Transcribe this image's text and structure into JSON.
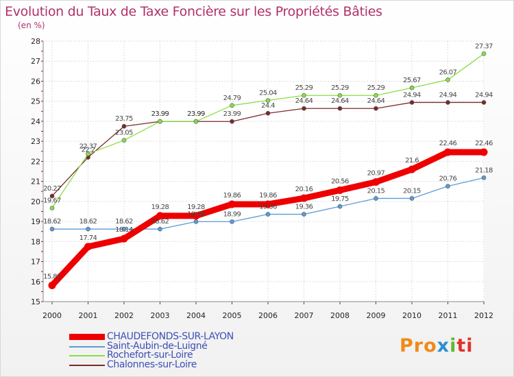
{
  "chart_data": {
    "type": "line",
    "title": "Evolution du Taux de Taxe Foncière sur les Propriétés Bâties",
    "unit_label": "(en %)",
    "xlabel": "",
    "ylabel": "",
    "x": [
      "2000",
      "2001",
      "2002",
      "2003",
      "2004",
      "2005",
      "2006",
      "2007",
      "2008",
      "2009",
      "2010",
      "2011",
      "2012"
    ],
    "ylim": [
      15,
      28
    ],
    "yticks": [
      "15",
      "16",
      "17",
      "18",
      "19",
      "20",
      "21",
      "22",
      "23",
      "24",
      "25",
      "26",
      "27",
      "28"
    ],
    "grid": true,
    "legend_position": "bottom-left",
    "series": [
      {
        "name": "CHAUDEFONDS-SUR-LAYON",
        "color": "#ee0000",
        "values": [
          15.81,
          17.74,
          18.14,
          19.28,
          19.28,
          19.86,
          19.86,
          20.16,
          20.56,
          20.97,
          21.6,
          22.46,
          22.46
        ],
        "labels": [
          "15.81",
          "17.74",
          "18.14",
          "19.28",
          "19.28",
          "19.86",
          "19.86",
          "20.16",
          "20.56",
          "20.97",
          "21.6",
          "22.46",
          "22.46"
        ]
      },
      {
        "name": "Saint-Aubin-de-Luigné",
        "color": "#5b9bd5",
        "values": [
          18.62,
          18.62,
          18.62,
          18.62,
          18.99,
          18.99,
          19.36,
          19.36,
          19.75,
          20.15,
          20.15,
          20.76,
          21.18
        ],
        "labels": [
          "18.62",
          "18.62",
          "18.62",
          "18.62",
          "18.99",
          "18.99",
          "19.36",
          "19.36",
          "19.75",
          "20.15",
          "20.15",
          "20.76",
          "21.18"
        ]
      },
      {
        "name": "Rochefort-sur-Loire",
        "color": "#88dd44",
        "values": [
          19.67,
          22.37,
          23.05,
          23.99,
          23.99,
          24.79,
          25.04,
          25.29,
          25.29,
          25.29,
          25.67,
          26.07,
          27.37
        ],
        "labels": [
          "19.67",
          "22.37",
          "23.05",
          "23.99",
          "23.99",
          "24.79",
          "25.04",
          "25.29",
          "25.29",
          "25.29",
          "25.67",
          "26.07",
          "27.37"
        ]
      },
      {
        "name": "Chalonnes-sur-Loire",
        "color": "#7a2a2a",
        "values": [
          20.27,
          22.2,
          23.75,
          23.99,
          23.99,
          23.99,
          24.4,
          24.64,
          24.64,
          24.64,
          24.94,
          24.94,
          24.94
        ],
        "labels": [
          "20.27",
          "22.2",
          "23.75",
          "23.99",
          "23.99",
          "23.99",
          "24.4",
          "24.64",
          "24.64",
          "24.64",
          "24.94",
          "24.94",
          "24.94"
        ]
      }
    ]
  },
  "legend": {
    "items": [
      "CHAUDEFONDS-SUR-LAYON",
      "Saint-Aubin-de-Luigné",
      "Rochefort-sur-Loire",
      "Chalonnes-sur-Loire"
    ]
  },
  "logo": {
    "parts": [
      "Pro",
      "x",
      "i",
      "ti"
    ]
  }
}
